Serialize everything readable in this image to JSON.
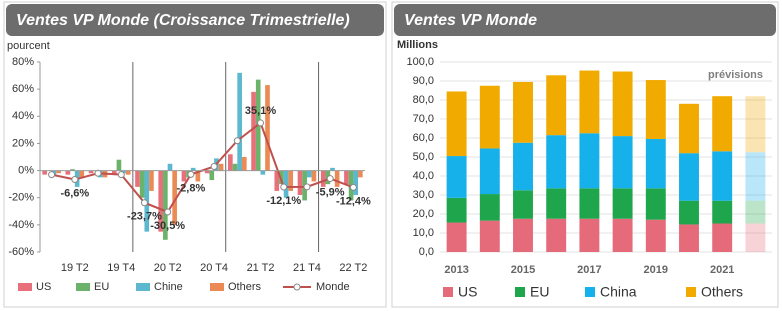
{
  "chart_data": [
    {
      "type": "bar",
      "title": "Ventes VP Monde (Croissance Trimestrielle)",
      "y_label": "pourcent",
      "categories": [
        null,
        "19 T2",
        null,
        "19 T4",
        null,
        "20 T2",
        null,
        "20 T4",
        null,
        "21 T2",
        null,
        "21 T4",
        null,
        "22 T2"
      ],
      "series": [
        {
          "name": "US",
          "color": "#e8707a",
          "values": [
            -3,
            -3,
            -2,
            -3,
            -12,
            -45,
            -8,
            -2,
            12,
            58,
            -15,
            -18,
            -12,
            -10
          ]
        },
        {
          "name": "EU",
          "color": "#6bb36b",
          "values": [
            0,
            1,
            0,
            8,
            -20,
            -51,
            -5,
            -7,
            5,
            67,
            -10,
            -22,
            -10,
            -22
          ]
        },
        {
          "name": "Chine",
          "color": "#5bb8cf",
          "values": [
            -4,
            -12,
            -5,
            -2,
            -45,
            5,
            2,
            9,
            72,
            -3,
            -20,
            -5,
            2,
            -18
          ]
        },
        {
          "name": "Others",
          "color": "#ec8a55",
          "values": [
            -2,
            -5,
            -5,
            -3,
            -15,
            -40,
            -8,
            5,
            10,
            63,
            -15,
            -8,
            -12,
            -5
          ]
        },
        {
          "name": "Monde",
          "color": "#c0504d",
          "type": "line",
          "values": [
            -3,
            -6.6,
            -2,
            -3,
            -23.7,
            -30.5,
            -2.8,
            3,
            22,
            35.1,
            -12.1,
            -12,
            -5.9,
            -12.4
          ],
          "value_labels": [
            null,
            "-6,6%",
            null,
            null,
            "-23,7%",
            "-30,5%",
            "-2,8%",
            null,
            null,
            "35,1%",
            "-12,1%",
            null,
            "-5,9%",
            "-12,4%"
          ]
        }
      ],
      "ylim": [
        -60,
        80
      ],
      "yticks": [
        {
          "value": -60,
          "label": "-60%"
        },
        {
          "value": -40,
          "label": "-40%"
        },
        {
          "value": -20,
          "label": "-20%"
        },
        {
          "value": 0,
          "label": "0%"
        },
        {
          "value": 20,
          "label": "20%"
        },
        {
          "value": 40,
          "label": "40%"
        },
        {
          "value": 60,
          "label": "60%"
        },
        {
          "value": 80,
          "label": "80%"
        }
      ]
    },
    {
      "type": "stacked_bar",
      "title": "Ventes VP Monde",
      "y_label": "Millions",
      "annotation": "prévisions",
      "categories": [
        "2013",
        null,
        "2015",
        null,
        "2017",
        null,
        "2019",
        null,
        "2021",
        null
      ],
      "series": [
        {
          "name": "US",
          "color": "#e56b7b",
          "values": [
            15.5,
            16.5,
            17.5,
            17.5,
            17.5,
            17.5,
            17,
            14.5,
            15,
            15
          ]
        },
        {
          "name": "EU",
          "color": "#1fa64c",
          "values": [
            13,
            14,
            15,
            16,
            16,
            16,
            16.5,
            12.5,
            12,
            12
          ]
        },
        {
          "name": "China",
          "color": "#16b0ea",
          "values": [
            22,
            24,
            25,
            28,
            29,
            27.5,
            26,
            25,
            26,
            25.5
          ]
        },
        {
          "name": "Others",
          "color": "#f0aa00",
          "values": [
            34,
            33,
            32,
            31.5,
            33,
            34,
            31,
            26,
            29,
            29.5
          ]
        }
      ],
      "ylim": [
        0,
        100
      ],
      "yticks": [
        {
          "value": 0,
          "label": "0,0"
        },
        {
          "value": 10,
          "label": "10,0"
        },
        {
          "value": 20,
          "label": "20,0"
        },
        {
          "value": 30,
          "label": "30,0"
        },
        {
          "value": 40,
          "label": "40,0"
        },
        {
          "value": 50,
          "label": "50,0"
        },
        {
          "value": 60,
          "label": "60,0"
        },
        {
          "value": 70,
          "label": "70,0"
        },
        {
          "value": 80,
          "label": "80,0"
        },
        {
          "value": 90,
          "label": "90,0"
        },
        {
          "value": 100,
          "label": "100,0"
        }
      ]
    }
  ]
}
